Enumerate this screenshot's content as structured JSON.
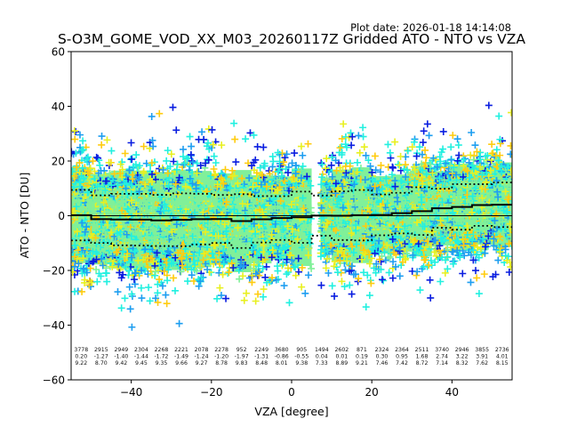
{
  "chart_data": {
    "type": "scatter",
    "title": "S-O3M_GOME_VOD_XX_M03_20260117Z Gridded ATO - NTO vs VZA",
    "subtitle": "Plot date: 2026-01-18 14:14:08",
    "xlabel": "VZA [degree]",
    "ylabel": "ATO - NTO [DU]",
    "xlim": [
      -55,
      55
    ],
    "ylim": [
      -60,
      60
    ],
    "xticks": [
      -40,
      -20,
      0,
      20,
      40
    ],
    "xtick_labels": [
      "−40",
      "−20",
      "0",
      "20",
      "40"
    ],
    "yticks": [
      -60,
      -40,
      -20,
      0,
      20,
      40,
      60
    ],
    "ytick_labels": [
      "−60",
      "−40",
      "−20",
      "0",
      "20",
      "40",
      "60"
    ],
    "grid": false,
    "marker": "plus",
    "colors": [
      "#0a1ee0",
      "#1e9ef0",
      "#22f0e0",
      "#80f098",
      "#e8f020",
      "#ffcc10"
    ],
    "background_color": "#80f09a",
    "bins": {
      "width": 5,
      "centers": [
        -52.5,
        -47.5,
        -42.5,
        -37.5,
        -32.5,
        -27.5,
        -22.5,
        -17.5,
        -12.5,
        -7.5,
        -2.5,
        2.5,
        7.5,
        12.5,
        17.5,
        22.5,
        27.5,
        32.5,
        37.5,
        42.5,
        47.5,
        52.5
      ],
      "counts": [
        "3778",
        "2915",
        "2949",
        "2304",
        "2268",
        "2221",
        "2078",
        "2278",
        "952",
        "2249",
        "3680",
        "905",
        "1494",
        "2602",
        "871",
        "2324",
        "2364",
        "2511",
        "3740",
        "2946",
        "3855",
        "2736"
      ],
      "means": [
        "0.20",
        "-1.27",
        "-1.40",
        "-1.44",
        "-1.72",
        "-1.49",
        "-1.24",
        "-1.20",
        "-1.97",
        "-1.31",
        "-0.86",
        "-0.55",
        "0.04",
        "0.01",
        "0.19",
        "0.30",
        "0.95",
        "1.68",
        "2.74",
        "3.22",
        "3.91",
        "4.01"
      ],
      "stds": [
        "9.22",
        "8.70",
        "9.42",
        "9.45",
        "9.35",
        "9.66",
        "9.27",
        "8.78",
        "9.83",
        "8.48",
        "8.01",
        "9.38",
        "7.33",
        "8.89",
        "9.21",
        "7.46",
        "7.42",
        "8.72",
        "7.14",
        "8.32",
        "7.62",
        "8.15"
      ]
    },
    "series": [
      {
        "name": "mean",
        "style": "solid",
        "color": "#000000"
      },
      {
        "name": "mean + std",
        "style": "dotted",
        "color": "#000000"
      },
      {
        "name": "mean - std",
        "style": "dotted",
        "color": "#000000"
      },
      {
        "name": "zero line",
        "style": "solid",
        "color": "#000000",
        "y": 0
      }
    ]
  }
}
